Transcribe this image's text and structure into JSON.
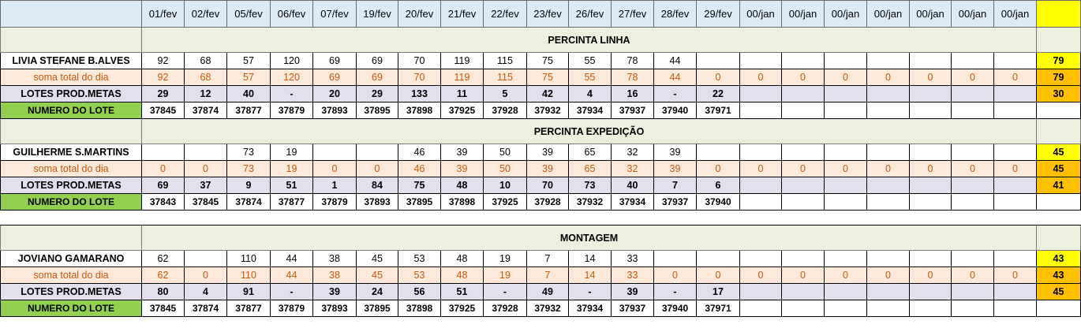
{
  "header": {
    "dates": [
      "01/fev",
      "02/fev",
      "05/fev",
      "06/fev",
      "07/fev",
      "19/fev",
      "20/fev",
      "21/fev",
      "22/fev",
      "23/fev",
      "26/fev",
      "27/fev",
      "28/fev",
      "29/fev",
      "00/jan",
      "00/jan",
      "00/jan",
      "00/jan",
      "00/jan",
      "00/jan",
      "00/jan"
    ]
  },
  "sections": [
    {
      "title": "PERCINTA LINHA",
      "worker": {
        "name": "LIVIA STEFANE B.ALVES",
        "values": [
          "92",
          "68",
          "57",
          "120",
          "69",
          "69",
          "70",
          "119",
          "115",
          "75",
          "55",
          "78",
          "44",
          "",
          "",
          "",
          "",
          "",
          "",
          "",
          ""
        ],
        "total": "79"
      },
      "soma": {
        "label": "soma total  do dia",
        "values": [
          "92",
          "68",
          "57",
          "120",
          "69",
          "69",
          "70",
          "119",
          "115",
          "75",
          "55",
          "78",
          "44",
          "0",
          "0",
          "0",
          "0",
          "0",
          "0",
          "0",
          "0"
        ],
        "total": "79"
      },
      "lotes": {
        "label": "LOTES PROD.METAS",
        "values": [
          "29",
          "12",
          "40",
          "-",
          "20",
          "29",
          "133",
          "11",
          "5",
          "42",
          "4",
          "16",
          "-",
          "22",
          "",
          "",
          "",
          "",
          "",
          "",
          ""
        ],
        "total": "30"
      },
      "numero": {
        "label": "NUMERO DO LOTE",
        "values": [
          "37845",
          "37874",
          "37877",
          "37879",
          "37893",
          "37895",
          "37898",
          "37925",
          "37928",
          "37932",
          "37934",
          "37937",
          "37940",
          "37971",
          "",
          "",
          "",
          "",
          "",
          "",
          ""
        ],
        "total": ""
      }
    },
    {
      "title": "PERCINTA EXPEDIÇÃO",
      "worker": {
        "name": "GUILHERME S.MARTINS",
        "values": [
          "",
          "",
          "73",
          "19",
          "",
          "",
          "46",
          "39",
          "50",
          "39",
          "65",
          "32",
          "39",
          "",
          "",
          "",
          "",
          "",
          "",
          "",
          ""
        ],
        "total": "45"
      },
      "soma": {
        "label": "soma total  do dia",
        "values": [
          "0",
          "0",
          "73",
          "19",
          "0",
          "0",
          "46",
          "39",
          "50",
          "39",
          "65",
          "32",
          "39",
          "0",
          "0",
          "0",
          "0",
          "0",
          "0",
          "0",
          "0"
        ],
        "total": "45"
      },
      "lotes": {
        "label": "LOTES PROD.METAS",
        "values": [
          "69",
          "37",
          "9",
          "51",
          "1",
          "84",
          "75",
          "48",
          "10",
          "70",
          "73",
          "40",
          "7",
          "6",
          "",
          "",
          "",
          "",
          "",
          "",
          ""
        ],
        "total": "41"
      },
      "numero": {
        "label": "NUMERO DO LOTE",
        "values": [
          "37843",
          "37845",
          "37874",
          "37877",
          "37879",
          "37893",
          "37895",
          "37898",
          "37925",
          "37928",
          "37932",
          "37934",
          "37937",
          "37940",
          "",
          "",
          "",
          "",
          "",
          "",
          ""
        ],
        "total": ""
      }
    },
    {
      "title": "MONTAGEM",
      "worker": {
        "name": "JOVIANO GAMARANO",
        "values": [
          "62",
          "",
          "110",
          "44",
          "38",
          "45",
          "53",
          "48",
          "19",
          "7",
          "14",
          "33",
          "",
          "",
          "",
          "",
          "",
          "",
          "",
          "",
          ""
        ],
        "total": "43"
      },
      "soma": {
        "label": "soma total  do dia",
        "values": [
          "62",
          "0",
          "110",
          "44",
          "38",
          "45",
          "53",
          "48",
          "19",
          "7",
          "14",
          "33",
          "0",
          "0",
          "0",
          "0",
          "0",
          "0",
          "0",
          "0",
          "0"
        ],
        "total": "43"
      },
      "lotes": {
        "label": "LOTES PROD.METAS",
        "values": [
          "80",
          "4",
          "91",
          "-",
          "39",
          "24",
          "56",
          "51",
          "-",
          "49",
          "-",
          "39",
          "-",
          "17",
          "",
          "",
          "",
          "",
          "",
          "",
          ""
        ],
        "total": "45"
      },
      "numero": {
        "label": "NUMERO DO LOTE",
        "values": [
          "37845",
          "37874",
          "37877",
          "37879",
          "37893",
          "37895",
          "37898",
          "37925",
          "37928",
          "37932",
          "37934",
          "37937",
          "37940",
          "37971",
          "",
          "",
          "",
          "",
          "",
          "",
          ""
        ],
        "total": ""
      }
    }
  ]
}
